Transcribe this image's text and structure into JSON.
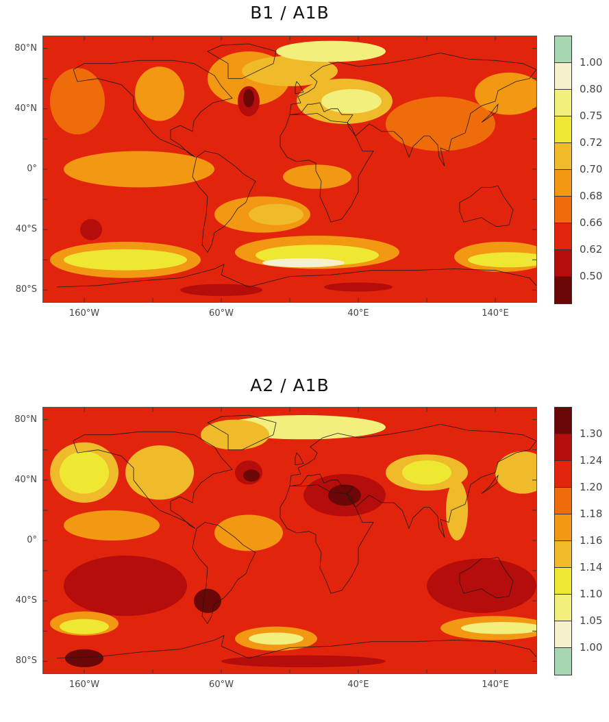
{
  "panels": [
    {
      "title": "B1 / A1B",
      "lat_labels": [
        "80°N",
        "40°N",
        "0°",
        "40°S",
        "80°S"
      ],
      "lon_labels": [
        "160°W",
        "60°W",
        "40°E",
        "140°E"
      ],
      "colorbar": {
        "labels": [
          "1.00",
          "0.80",
          "0.75",
          "0.72",
          "0.70",
          "0.68",
          "0.66",
          "0.62",
          "0.50"
        ],
        "colors": [
          "#a6d7b0",
          "#f4f1cc",
          "#f3ef7c",
          "#efe833",
          "#f0bb2a",
          "#f39812",
          "#ef6c0a",
          "#e3240c",
          "#b50d0b",
          "#6b0707"
        ]
      },
      "map": {
        "background_color": "#e3240c",
        "regions": [
          {
            "color": "#ef6c0a",
            "lon": -165,
            "lat": 45,
            "rx": 20,
            "ry": 22
          },
          {
            "color": "#f39812",
            "lon": -105,
            "lat": 50,
            "rx": 18,
            "ry": 18
          },
          {
            "color": "#f39812",
            "lon": -40,
            "lat": 60,
            "rx": 30,
            "ry": 18
          },
          {
            "color": "#f0bb2a",
            "lon": -10,
            "lat": 65,
            "rx": 35,
            "ry": 10
          },
          {
            "color": "#f3ef7c",
            "lon": 20,
            "lat": 78,
            "rx": 40,
            "ry": 7
          },
          {
            "color": "#f0bb2a",
            "lon": 30,
            "lat": 45,
            "rx": 35,
            "ry": 15
          },
          {
            "color": "#f3ef7c",
            "lon": 35,
            "lat": 45,
            "rx": 22,
            "ry": 8
          },
          {
            "color": "#ef6c0a",
            "lon": 100,
            "lat": 30,
            "rx": 40,
            "ry": 18
          },
          {
            "color": "#f39812",
            "lon": 150,
            "lat": 50,
            "rx": 25,
            "ry": 14
          },
          {
            "color": "#f39812",
            "lon": -120,
            "lat": 0,
            "rx": 55,
            "ry": 12
          },
          {
            "color": "#f39812",
            "lon": -30,
            "lat": -30,
            "rx": 35,
            "ry": 12
          },
          {
            "color": "#f0bb2a",
            "lon": -20,
            "lat": -30,
            "rx": 20,
            "ry": 7
          },
          {
            "color": "#f39812",
            "lon": 10,
            "lat": -5,
            "rx": 25,
            "ry": 8
          },
          {
            "color": "#f39812",
            "lon": -130,
            "lat": -60,
            "rx": 55,
            "ry": 12
          },
          {
            "color": "#efe833",
            "lon": -130,
            "lat": -60,
            "rx": 45,
            "ry": 7
          },
          {
            "color": "#f39812",
            "lon": 10,
            "lat": -55,
            "rx": 60,
            "ry": 11
          },
          {
            "color": "#efe833",
            "lon": 10,
            "lat": -57,
            "rx": 45,
            "ry": 7
          },
          {
            "color": "#f4f1cc",
            "lon": 0,
            "lat": -62,
            "rx": 30,
            "ry": 3
          },
          {
            "color": "#f39812",
            "lon": 145,
            "lat": -58,
            "rx": 35,
            "ry": 10
          },
          {
            "color": "#efe833",
            "lon": 150,
            "lat": -60,
            "rx": 30,
            "ry": 5
          },
          {
            "color": "#b50d0b",
            "lon": -40,
            "lat": 45,
            "rx": 8,
            "ry": 10
          },
          {
            "color": "#6b0707",
            "lon": -40,
            "lat": 47,
            "rx": 4,
            "ry": 6
          },
          {
            "color": "#b50d0b",
            "lon": -155,
            "lat": -40,
            "rx": 8,
            "ry": 7
          },
          {
            "color": "#b50d0b",
            "lon": -60,
            "lat": -80,
            "rx": 30,
            "ry": 4
          },
          {
            "color": "#b50d0b",
            "lon": 40,
            "lat": -78,
            "rx": 25,
            "ry": 3
          }
        ]
      }
    },
    {
      "title": "A2 / A1B",
      "lat_labels": [
        "80°N",
        "40°N",
        "0°",
        "40°S",
        "80°S"
      ],
      "lon_labels": [
        "160°W",
        "60°W",
        "40°E",
        "140°E"
      ],
      "colorbar": {
        "labels": [
          "1.30",
          "1.24",
          "1.20",
          "1.18",
          "1.16",
          "1.14",
          "1.10",
          "1.05",
          "1.00"
        ],
        "colors": [
          "#6b0707",
          "#b50d0b",
          "#e3240c",
          "#ef6c0a",
          "#f39812",
          "#f0bb2a",
          "#efe833",
          "#f3ef7c",
          "#f4f1cc",
          "#a6d7b0"
        ]
      },
      "map": {
        "background_color": "#e3240c",
        "regions": [
          {
            "color": "#f0bb2a",
            "lon": -160,
            "lat": 45,
            "rx": 25,
            "ry": 20
          },
          {
            "color": "#efe833",
            "lon": -160,
            "lat": 45,
            "rx": 18,
            "ry": 14
          },
          {
            "color": "#f0bb2a",
            "lon": -105,
            "lat": 45,
            "rx": 25,
            "ry": 18
          },
          {
            "color": "#f3ef7c",
            "lon": 0,
            "lat": 75,
            "rx": 60,
            "ry": 8
          },
          {
            "color": "#f0bb2a",
            "lon": -50,
            "lat": 70,
            "rx": 25,
            "ry": 10
          },
          {
            "color": "#f0bb2a",
            "lon": 90,
            "lat": 45,
            "rx": 30,
            "ry": 12
          },
          {
            "color": "#efe833",
            "lon": 90,
            "lat": 45,
            "rx": 18,
            "ry": 8
          },
          {
            "color": "#f0bb2a",
            "lon": 160,
            "lat": 45,
            "rx": 20,
            "ry": 14
          },
          {
            "color": "#f0bb2a",
            "lon": 112,
            "lat": 20,
            "rx": 8,
            "ry": 20
          },
          {
            "color": "#f39812",
            "lon": -140,
            "lat": 10,
            "rx": 35,
            "ry": 10
          },
          {
            "color": "#f39812",
            "lon": -40,
            "lat": 5,
            "rx": 25,
            "ry": 12
          },
          {
            "color": "#b50d0b",
            "lon": 30,
            "lat": 30,
            "rx": 30,
            "ry": 14
          },
          {
            "color": "#6b0707",
            "lon": 30,
            "lat": 30,
            "rx": 12,
            "ry": 7
          },
          {
            "color": "#b50d0b",
            "lon": -130,
            "lat": -30,
            "rx": 45,
            "ry": 20
          },
          {
            "color": "#b50d0b",
            "lon": 130,
            "lat": -30,
            "rx": 40,
            "ry": 18
          },
          {
            "color": "#6b0707",
            "lon": -70,
            "lat": -40,
            "rx": 10,
            "ry": 8
          },
          {
            "color": "#f39812",
            "lon": -160,
            "lat": -55,
            "rx": 25,
            "ry": 8
          },
          {
            "color": "#efe833",
            "lon": -160,
            "lat": -57,
            "rx": 18,
            "ry": 5
          },
          {
            "color": "#f39812",
            "lon": -20,
            "lat": -65,
            "rx": 30,
            "ry": 8
          },
          {
            "color": "#f3ef7c",
            "lon": -20,
            "lat": -65,
            "rx": 20,
            "ry": 4
          },
          {
            "color": "#f39812",
            "lon": 140,
            "lat": -58,
            "rx": 40,
            "ry": 8
          },
          {
            "color": "#f3ef7c",
            "lon": 145,
            "lat": -58,
            "rx": 30,
            "ry": 4
          },
          {
            "color": "#6b0707",
            "lon": -160,
            "lat": -78,
            "rx": 14,
            "ry": 6
          },
          {
            "color": "#b50d0b",
            "lon": 0,
            "lat": -80,
            "rx": 60,
            "ry": 4
          },
          {
            "color": "#b50d0b",
            "lon": -40,
            "lat": 45,
            "rx": 10,
            "ry": 8
          },
          {
            "color": "#6b0707",
            "lon": -38,
            "lat": 43,
            "rx": 6,
            "ry": 4
          }
        ]
      }
    }
  ]
}
